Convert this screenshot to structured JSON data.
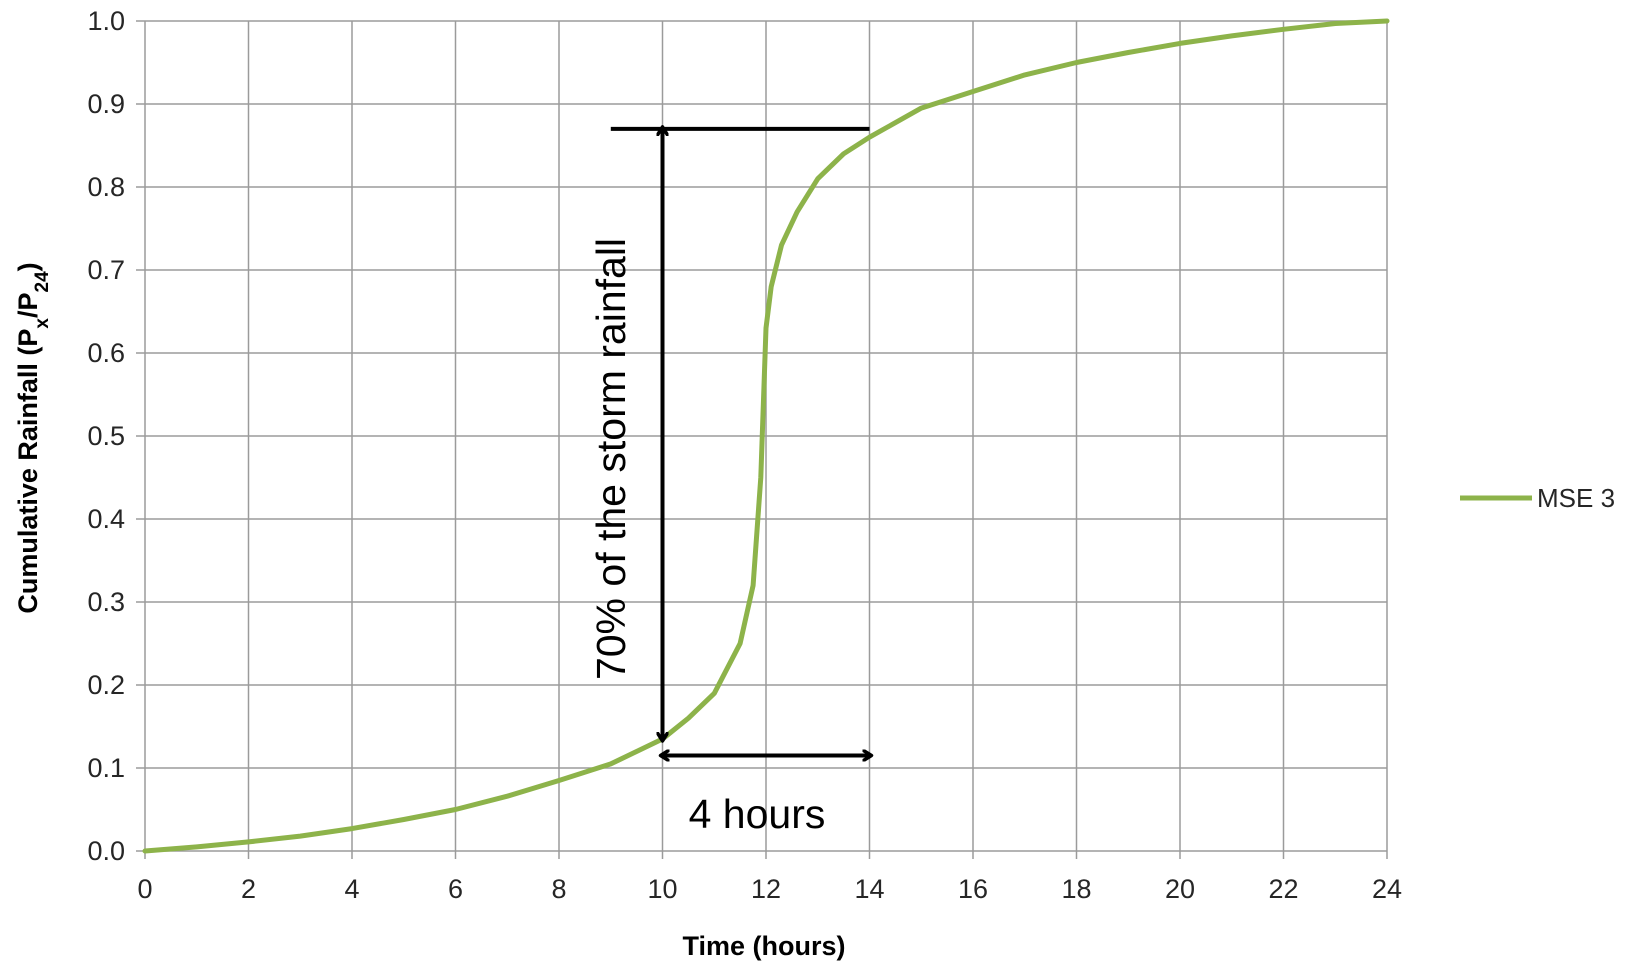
{
  "chart_data": {
    "type": "line",
    "title": "",
    "xlabel": "Time (hours)",
    "ylabel": {
      "prefix": "Cumulative Rainfall (P",
      "sub1": "x",
      "mid": "/P",
      "sub2": "24",
      "suffix": ")"
    },
    "xlim": [
      0,
      24
    ],
    "ylim": [
      0,
      1.0
    ],
    "x_ticks": [
      0,
      2,
      4,
      6,
      8,
      10,
      12,
      14,
      16,
      18,
      20,
      22,
      24
    ],
    "x_tick_labels": [
      "0",
      "2",
      "4",
      "6",
      "8",
      "10",
      "12",
      "14",
      "16",
      "18",
      "20",
      "22",
      "24"
    ],
    "y_ticks": [
      0,
      0.1,
      0.2,
      0.3,
      0.4,
      0.5,
      0.6,
      0.7,
      0.8,
      0.9,
      1.0
    ],
    "y_tick_labels": [
      "0.0",
      "0.1",
      "0.2",
      "0.3",
      "0.4",
      "0.5",
      "0.6",
      "0.7",
      "0.8",
      "0.9",
      "1.0"
    ],
    "grid": true,
    "legend": {
      "position": "right",
      "entries": [
        "MSE 3"
      ]
    },
    "series": [
      {
        "name": "MSE 3",
        "color": "#8db34a",
        "x": [
          0,
          1,
          2,
          3,
          4,
          5,
          6,
          7,
          8,
          9,
          10,
          10.5,
          11,
          11.5,
          11.75,
          11.9,
          12.0,
          12.1,
          12.3,
          12.6,
          13.0,
          13.5,
          14.0,
          15.0,
          16.0,
          17.0,
          18.0,
          19.0,
          20.0,
          21.0,
          22.0,
          23.0,
          24.0
        ],
        "y": [
          0.0,
          0.005,
          0.011,
          0.018,
          0.027,
          0.038,
          0.05,
          0.066,
          0.085,
          0.105,
          0.135,
          0.16,
          0.19,
          0.25,
          0.32,
          0.45,
          0.63,
          0.68,
          0.73,
          0.77,
          0.81,
          0.84,
          0.86,
          0.895,
          0.915,
          0.935,
          0.95,
          0.962,
          0.973,
          0.982,
          0.99,
          0.997,
          1.0
        ]
      }
    ],
    "annotations": {
      "vertical_text": "70% of the storm rainfall",
      "horizontal_text": "4 hours",
      "vertical_arrow": {
        "x": 10,
        "y_from": 0.135,
        "y_to": 0.87
      },
      "reference_line": {
        "x_from": 9,
        "x_to": 14,
        "y": 0.87
      },
      "horizontal_arrow": {
        "x_from": 10,
        "x_to": 14,
        "y": 0.115
      }
    }
  }
}
